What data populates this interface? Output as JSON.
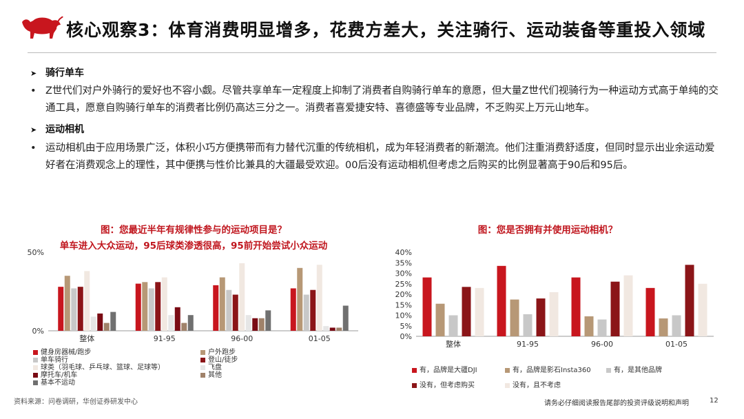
{
  "header": {
    "title": "核心观察3：体育消费明显增多，花费方差大，关注骑行、运动装备等重投入领域"
  },
  "sections": [
    {
      "heading": "骑行单车",
      "bullet": "•",
      "text": "Z世代们对户外骑行的爱好也不容小觑。尽管共享单车一定程度上抑制了消费者自购骑行单车的意愿，但大量Z世代们视骑行为一种运动方式高于单纯的交通工具，愿意自购骑行单车的消费者比例仍高达三分之一。消费者喜爱捷安特、喜德盛等专业品牌，不乏购买上万元山地车。"
    },
    {
      "heading": "运动相机",
      "bullet": "•",
      "text": "运动相机由于应用场景广泛，体积小巧方便携带而有力替代沉重的传统相机，成为年轻消费者的新潮流。他们注重消费舒适度，但同时显示出业余运动爱好者在消费观念上的理性，其中便携与性价比兼具的大疆最受欢迎。00后没有运动相机但考虑之后购买的比例显著高于90后和95后。"
    }
  ],
  "chart_data": [
    {
      "type": "bar",
      "title": "图：您最近半年有规律性参与的运动项目是？",
      "subtitle": "单车进入大众运动，95后球类渗透很高，95前开始尝试小众运动",
      "categories": [
        "整体",
        "91-95",
        "96-00",
        "01-05"
      ],
      "ytick_labels": [
        "0%",
        "50%"
      ],
      "ylim": [
        0,
        50
      ],
      "grid": false,
      "series": [
        {
          "name": "健身房器械/跑步",
          "color": "#c8161e",
          "values": [
            28,
            30,
            29,
            27
          ]
        },
        {
          "name": "户外跑步",
          "color": "#b79876",
          "values": [
            35,
            31,
            34,
            40
          ]
        },
        {
          "name": "单车骑行",
          "color": "#c8c8c8",
          "values": [
            27,
            27,
            26,
            23
          ]
        },
        {
          "name": "登山/徒步",
          "color": "#8b1518",
          "values": [
            28,
            31,
            23,
            26
          ]
        },
        {
          "name": "球类（羽毛球、乒乓球、篮球、足球等）",
          "color": "#f1e8e1",
          "values": [
            38,
            34,
            43,
            42
          ]
        },
        {
          "name": "飞盘",
          "color": "#e6e6e6",
          "values": [
            9,
            10,
            10,
            3
          ]
        },
        {
          "name": "摩托车/机车",
          "color": "#7a0b14",
          "values": [
            11,
            15,
            8,
            2
          ]
        },
        {
          "name": "其他",
          "color": "#a0826a",
          "values": [
            5,
            5,
            8,
            2
          ]
        },
        {
          "name": "基本不运动",
          "color": "#707070",
          "values": [
            12,
            10,
            13,
            16
          ]
        }
      ],
      "legend_position": "bottom"
    },
    {
      "type": "bar",
      "title": "图：您是否拥有并使用运动相机？",
      "categories": [
        "整体",
        "91-95",
        "96-00",
        "01-05"
      ],
      "ytick_labels": [
        "0%",
        "5%",
        "10%",
        "15%",
        "20%",
        "25%",
        "30%",
        "35%",
        "40%"
      ],
      "ylim": [
        0,
        40
      ],
      "grid": false,
      "series": [
        {
          "name": "有，品牌是大疆DJI",
          "color": "#c8161e",
          "values": [
            28,
            33.5,
            28,
            23
          ]
        },
        {
          "name": "有，品牌是影石Insta360",
          "color": "#b79876",
          "values": [
            15.5,
            17.5,
            9.5,
            8.5
          ]
        },
        {
          "name": "有，是其他品牌",
          "color": "#c8c8c8",
          "values": [
            10,
            10.5,
            8,
            10
          ]
        },
        {
          "name": "没有，但考虑购买",
          "color": "#8b1518",
          "values": [
            23.5,
            18,
            26,
            34
          ]
        },
        {
          "name": "没有，且不考虑",
          "color": "#f1e8e1",
          "values": [
            23,
            21,
            29,
            25
          ]
        }
      ],
      "legend_position": "bottom"
    }
  ],
  "footer": {
    "source": "资料来源：问卷调研，华创证券研发中心",
    "disclaimer": "请务必仔细阅读报告尾部的投资评级说明和声明",
    "page": "12"
  }
}
